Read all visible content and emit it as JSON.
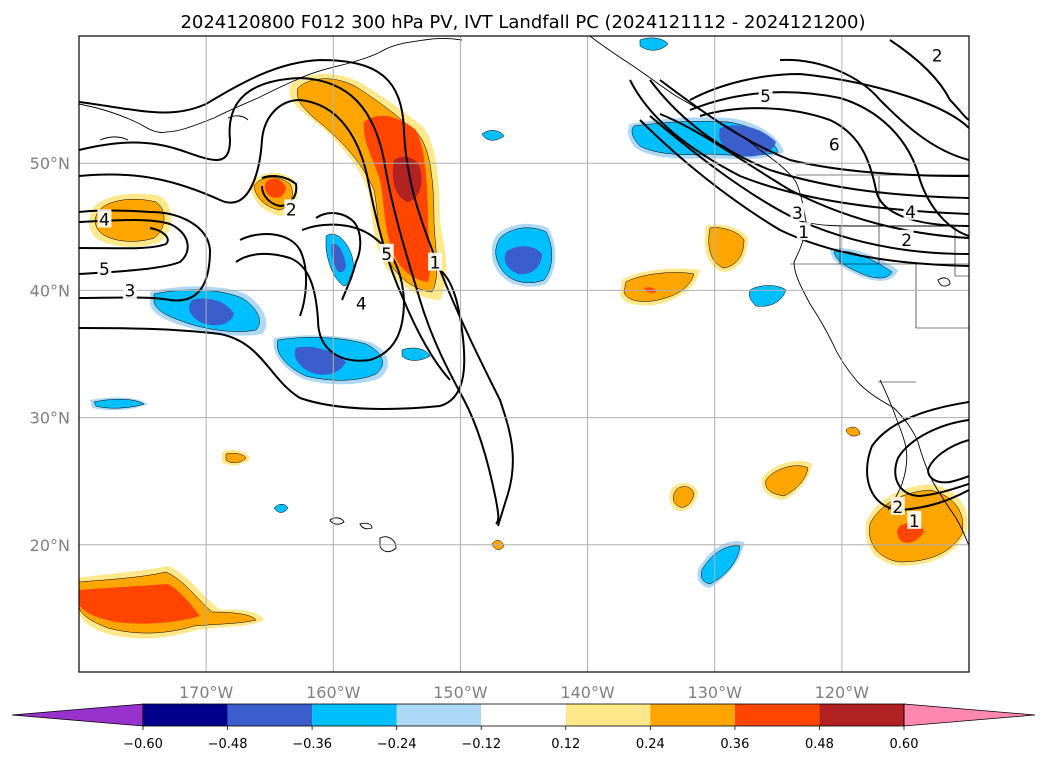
{
  "chart_data": {
    "type": "contour-map",
    "title": "2024120800 F012 300 hPa PV, IVT Landfall PC (2024121112 - 2024121200)",
    "xlim": [
      -180,
      -110
    ],
    "ylim": [
      10,
      60
    ],
    "grid": true,
    "x_ticks": [
      {
        "value": -170,
        "label": "170°W"
      },
      {
        "value": -160,
        "label": "160°W"
      },
      {
        "value": -150,
        "label": "150°W"
      },
      {
        "value": -140,
        "label": "140°W"
      },
      {
        "value": -130,
        "label": "130°W"
      },
      {
        "value": -120,
        "label": "120°W"
      }
    ],
    "y_ticks": [
      {
        "value": 20,
        "label": "20°N"
      },
      {
        "value": 30,
        "label": "30°N"
      },
      {
        "value": 40,
        "label": "40°N"
      },
      {
        "value": 50,
        "label": "50°N"
      }
    ],
    "colorbar": {
      "orientation": "horizontal",
      "extend": "both",
      "levels": [
        -0.6,
        -0.48,
        -0.36,
        -0.24,
        -0.12,
        0.12,
        0.24,
        0.36,
        0.48,
        0.6
      ],
      "tick_labels": [
        "−0.60",
        "−0.48",
        "−0.36",
        "−0.24",
        "−0.12",
        "0.12",
        "0.24",
        "0.36",
        "0.48",
        "0.60"
      ],
      "colors": [
        "#9932cc",
        "#00008b",
        "#3a5fcd",
        "#00bfff",
        "#add8f6",
        "#ffffff",
        "#ffe88a",
        "#ffa500",
        "#ff4500",
        "#b22222",
        "#ff88b0"
      ]
    },
    "contour_labels": [
      {
        "text": "4",
        "lon": -178.0,
        "lat": 45.5
      },
      {
        "text": "5",
        "lon": -178.0,
        "lat": 41.6
      },
      {
        "text": "3",
        "lon": -176.0,
        "lat": 39.9
      },
      {
        "text": "2",
        "lon": -163.3,
        "lat": 46.3
      },
      {
        "text": "5",
        "lon": -155.8,
        "lat": 42.8
      },
      {
        "text": "4",
        "lon": -157.8,
        "lat": 38.9
      },
      {
        "text": "1",
        "lon": -152.0,
        "lat": 42.1
      },
      {
        "text": "5",
        "lon": -126.0,
        "lat": 55.2
      },
      {
        "text": "6",
        "lon": -120.6,
        "lat": 51.4
      },
      {
        "text": "3",
        "lon": -123.5,
        "lat": 46.0
      },
      {
        "text": "1",
        "lon": -123.0,
        "lat": 44.5
      },
      {
        "text": "4",
        "lon": -114.6,
        "lat": 46.1
      },
      {
        "text": "2",
        "lon": -114.9,
        "lat": 43.9
      },
      {
        "text": "2",
        "lon": -115.6,
        "lat": 22.9
      },
      {
        "text": "1",
        "lon": -114.3,
        "lat": 21.8
      },
      {
        "text": "2",
        "lon": -112.5,
        "lat": 58.4
      }
    ]
  }
}
